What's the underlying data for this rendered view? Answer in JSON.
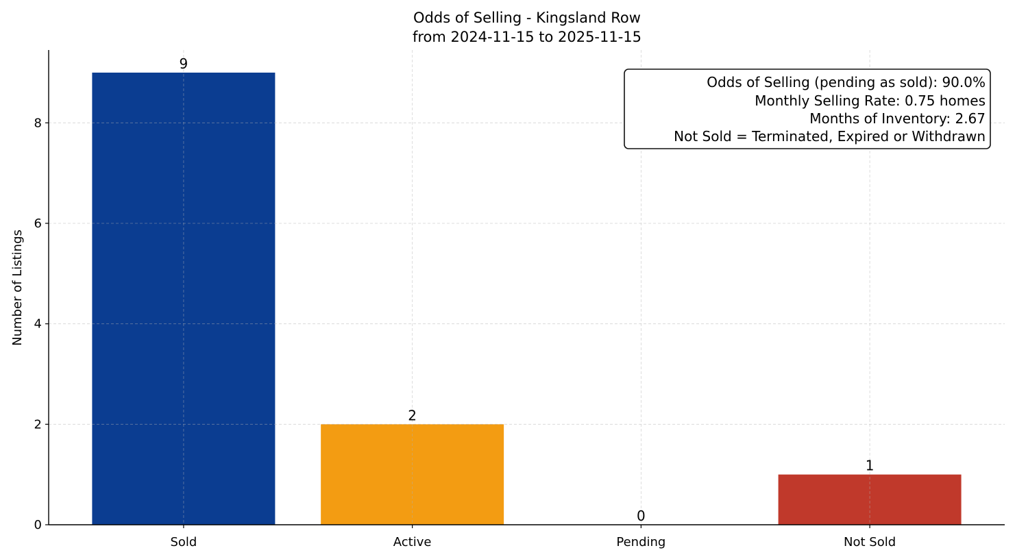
{
  "chart_data": {
    "type": "bar",
    "title": "Odds of Selling - Kingsland Row",
    "subtitle": "from 2024-11-15 to 2025-11-15",
    "xlabel": "",
    "ylabel": "Number of Listings",
    "categories": [
      "Sold",
      "Active",
      "Pending",
      "Not Sold"
    ],
    "values": [
      9,
      2,
      0,
      1
    ],
    "data_labels": [
      "9",
      "2",
      "0",
      "1"
    ],
    "colors": [
      "#0b3d91",
      "#f39c12",
      "#f39c12",
      "#c0392b"
    ],
    "ylim": [
      0,
      9.45
    ],
    "yticks": [
      0,
      2,
      4,
      6,
      8
    ],
    "grid": true,
    "annotation": {
      "placement": "top-right",
      "lines": [
        "Odds of Selling (pending as sold): 90.0%",
        "Monthly Selling Rate: 0.75 homes",
        "Months of Inventory: 2.67",
        "Not Sold = Terminated, Expired or Withdrawn"
      ]
    }
  }
}
